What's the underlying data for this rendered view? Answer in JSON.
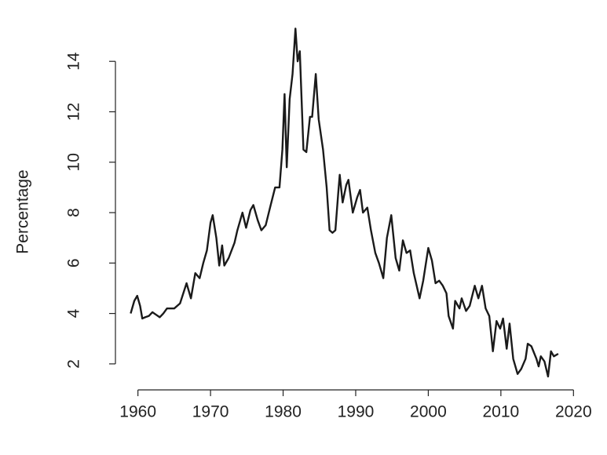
{
  "chart_data": {
    "type": "line",
    "y_label": "Percentage",
    "x": [
      1959.0,
      1959.5,
      1959.9,
      1960.3,
      1960.6,
      1961.0,
      1961.5,
      1962.0,
      1962.5,
      1963.0,
      1963.5,
      1964.0,
      1965.0,
      1965.8,
      1966.7,
      1967.3,
      1967.9,
      1968.5,
      1969.0,
      1969.5,
      1970.0,
      1970.3,
      1970.8,
      1971.2,
      1971.6,
      1971.9,
      1972.5,
      1973.3,
      1973.7,
      1974.4,
      1974.9,
      1975.5,
      1975.9,
      1976.5,
      1977.0,
      1977.6,
      1978.2,
      1978.9,
      1979.5,
      1979.9,
      1980.2,
      1980.5,
      1980.9,
      1981.3,
      1981.7,
      1982.0,
      1982.3,
      1982.8,
      1983.2,
      1983.7,
      1984.0,
      1984.5,
      1984.9,
      1985.5,
      1986.0,
      1986.4,
      1986.8,
      1987.2,
      1987.6,
      1987.8,
      1988.2,
      1988.7,
      1989.0,
      1989.6,
      1990.2,
      1990.6,
      1991.0,
      1991.6,
      1992.1,
      1992.7,
      1993.2,
      1993.8,
      1994.3,
      1994.9,
      1995.5,
      1996.0,
      1996.5,
      1997.0,
      1997.5,
      1998.0,
      1998.8,
      1999.3,
      2000.0,
      2000.5,
      2001.0,
      2001.5,
      2002.0,
      2002.5,
      2002.8,
      2003.4,
      2003.7,
      2004.3,
      2004.6,
      2005.2,
      2005.7,
      2006.4,
      2006.9,
      2007.4,
      2007.9,
      2008.4,
      2008.9,
      2009.4,
      2009.9,
      2010.3,
      2010.8,
      2011.2,
      2011.7,
      2012.3,
      2012.8,
      2013.4,
      2013.7,
      2014.2,
      2014.9,
      2015.2,
      2015.5,
      2016.0,
      2016.5,
      2016.9,
      2017.3,
      2017.9
    ],
    "series": [
      {
        "color": "#1a1a1a",
        "values": [
          4.0,
          4.5,
          4.7,
          4.3,
          3.8,
          3.85,
          3.9,
          4.05,
          3.95,
          3.85,
          4.0,
          4.2,
          4.2,
          4.4,
          5.2,
          4.6,
          5.6,
          5.4,
          6.0,
          6.5,
          7.6,
          7.9,
          7.0,
          5.9,
          6.7,
          5.9,
          6.2,
          6.8,
          7.3,
          8.0,
          7.4,
          8.1,
          8.3,
          7.7,
          7.3,
          7.5,
          8.2,
          9.0,
          9.0,
          10.5,
          12.7,
          9.8,
          12.5,
          13.5,
          15.3,
          14.0,
          14.4,
          10.5,
          10.4,
          11.8,
          11.8,
          13.5,
          11.7,
          10.5,
          9.0,
          7.3,
          7.2,
          7.3,
          8.8,
          9.5,
          8.4,
          9.1,
          9.3,
          8.0,
          8.6,
          8.9,
          8.0,
          8.2,
          7.3,
          6.4,
          6.0,
          5.4,
          7.0,
          7.9,
          6.2,
          5.7,
          6.9,
          6.4,
          6.5,
          5.6,
          4.6,
          5.3,
          6.6,
          6.1,
          5.2,
          5.3,
          5.1,
          4.8,
          3.9,
          3.4,
          4.5,
          4.2,
          4.6,
          4.1,
          4.3,
          5.1,
          4.6,
          5.1,
          4.2,
          3.9,
          2.5,
          3.7,
          3.4,
          3.8,
          2.6,
          3.6,
          2.2,
          1.6,
          1.8,
          2.2,
          2.8,
          2.7,
          2.2,
          1.9,
          2.3,
          2.1,
          1.5,
          2.5,
          2.3,
          2.4
        ]
      }
    ],
    "xlim": [
      1956.9,
      2020.4
    ],
    "xticks": [
      1960,
      1970,
      1980,
      1990,
      2000,
      2010,
      2020
    ],
    "ylim": [
      1,
      15.5
    ],
    "yticks": [
      2,
      4,
      6,
      8,
      10,
      12,
      14
    ]
  }
}
